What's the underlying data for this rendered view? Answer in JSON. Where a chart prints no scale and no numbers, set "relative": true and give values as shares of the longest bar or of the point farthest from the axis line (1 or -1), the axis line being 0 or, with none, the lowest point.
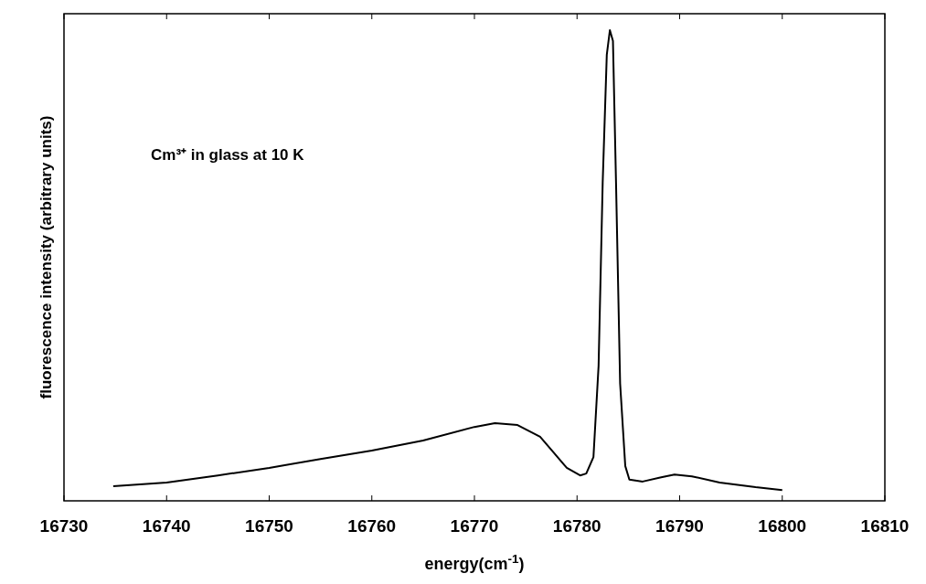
{
  "chart_data": {
    "type": "line",
    "relative": true,
    "xlabel": "energy(cm$^{-1}$)",
    "ylabel": "fluorescence intensity (arbitrary units)",
    "annotations": [
      "Cm³⁺  in  glass at 10 K"
    ],
    "xlim": [
      16730,
      16810
    ],
    "xticks": [
      16730,
      16740,
      16750,
      16760,
      16770,
      16780,
      16790,
      16800,
      16810
    ],
    "grid": false,
    "marker": "none",
    "line_style": "solid",
    "series": [
      {
        "color": "#000000",
        "x": [
          16734.8,
          16740,
          16745,
          16750,
          16755,
          16760,
          16765,
          16770,
          16772,
          16774.2,
          16776.4,
          16777.7,
          16779,
          16780.3,
          16780.9,
          16781.6,
          16782.1,
          16782.5,
          16782.9,
          16783.2,
          16783.5,
          16783.8,
          16784.2,
          16784.7,
          16785.1,
          16786.4,
          16788.2,
          16789.5,
          16791.2,
          16793.9,
          16797.4,
          16800
        ],
        "values": [
          0.031,
          0.039,
          0.054,
          0.07,
          0.089,
          0.107,
          0.128,
          0.157,
          0.165,
          0.161,
          0.136,
          0.103,
          0.07,
          0.054,
          0.058,
          0.093,
          0.287,
          0.676,
          0.948,
          1,
          0.977,
          0.676,
          0.249,
          0.074,
          0.045,
          0.041,
          0.05,
          0.056,
          0.052,
          0.039,
          0.029,
          0.023
        ]
      }
    ]
  }
}
